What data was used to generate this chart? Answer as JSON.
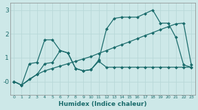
{
  "xlabel": "Humidex (Indice chaleur)",
  "bg_color": "#cde8e8",
  "line_color": "#1a6b6b",
  "grid_color": "#b8d8d8",
  "xlim": [
    -0.5,
    23.5
  ],
  "ylim": [
    -0.55,
    3.3
  ],
  "yticks": [
    0,
    1,
    2,
    3
  ],
  "ytick_labels": [
    "-0",
    "1",
    "2",
    "3"
  ],
  "xticks": [
    0,
    1,
    2,
    3,
    4,
    5,
    6,
    7,
    8,
    9,
    10,
    11,
    12,
    13,
    14,
    15,
    16,
    17,
    18,
    19,
    20,
    21,
    22,
    23
  ],
  "curve1_x": [
    0,
    1,
    2,
    3,
    4,
    5,
    6,
    7,
    8,
    9,
    10,
    11,
    12,
    13,
    14,
    15,
    16,
    17,
    18,
    19,
    20,
    21,
    22,
    23
  ],
  "curve1_y": [
    0,
    -0.15,
    0.75,
    0.8,
    1.75,
    1.75,
    1.3,
    1.2,
    0.55,
    0.45,
    0.5,
    0.9,
    2.2,
    2.65,
    2.7,
    2.7,
    2.7,
    2.85,
    3.0,
    2.45,
    2.45,
    1.85,
    0.7,
    0.6
  ],
  "curve2_x": [
    0,
    1,
    2,
    3,
    4,
    5,
    6,
    7,
    8,
    9,
    10,
    11,
    12,
    13,
    14,
    15,
    16,
    17,
    18,
    19,
    20,
    21,
    22,
    23
  ],
  "curve2_y": [
    0,
    -0.15,
    0.1,
    0.3,
    0.75,
    0.8,
    1.3,
    1.2,
    0.55,
    0.45,
    0.5,
    0.85,
    0.6,
    0.6,
    0.6,
    0.6,
    0.6,
    0.6,
    0.6,
    0.6,
    0.6,
    0.6,
    0.6,
    0.6
  ],
  "curve3_x": [
    0,
    1,
    3,
    4,
    5,
    6,
    7,
    8,
    9,
    10,
    11,
    12,
    13,
    14,
    15,
    16,
    17,
    18,
    19,
    20,
    21,
    22,
    23
  ],
  "curve3_y": [
    0,
    -0.15,
    0.3,
    0.45,
    0.55,
    0.65,
    0.75,
    0.85,
    0.95,
    1.05,
    1.18,
    1.3,
    1.43,
    1.55,
    1.67,
    1.8,
    1.93,
    2.05,
    2.18,
    2.3,
    2.42,
    2.45,
    0.7
  ]
}
